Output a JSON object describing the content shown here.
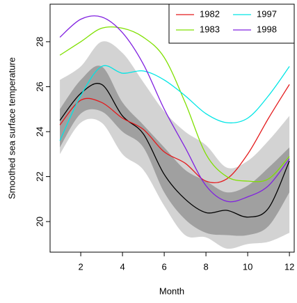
{
  "chart_data": {
    "type": "line",
    "xlabel": "Month",
    "ylabel": "Smoothed sea surface temperature",
    "x": [
      1,
      2,
      3,
      4,
      5,
      6,
      7,
      8,
      9,
      10,
      11,
      12
    ],
    "xlim": [
      0.53,
      12.23
    ],
    "ylim": [
      18.64,
      29.67
    ],
    "xticks": [
      2,
      4,
      6,
      8,
      10,
      12
    ],
    "yticks": [
      20,
      22,
      24,
      26,
      28
    ],
    "smooth": true,
    "legend": "top-right",
    "legend_columns": 2,
    "bands": [
      {
        "color": "#d3d3d3",
        "upper": [
          26.3,
          26.9,
          28.0,
          27.5,
          26.2,
          24.9,
          24.0,
          23.4,
          22.4,
          22.7,
          23.6,
          24.7
        ],
        "lower": [
          23.0,
          24.4,
          24.4,
          23.0,
          22.3,
          20.7,
          19.4,
          19.3,
          18.8,
          19.0,
          19.1,
          19.5
        ]
      },
      {
        "color": "#a0a0a0",
        "upper": [
          25.0,
          26.3,
          26.9,
          25.3,
          24.3,
          23.3,
          22.3,
          21.8,
          21.3,
          21.6,
          22.4,
          23.3
        ],
        "lower": [
          23.3,
          24.8,
          24.9,
          24.0,
          23.3,
          21.3,
          20.1,
          19.5,
          19.4,
          19.4,
          19.8,
          21.3
        ]
      }
    ],
    "median": {
      "color": "#000000",
      "values": [
        24.5,
        25.7,
        26.1,
        24.7,
        23.9,
        22.1,
        21.0,
        20.4,
        20.5,
        20.2,
        20.6,
        22.7
      ]
    },
    "series": [
      {
        "name": "1982",
        "color": "#e41a1c",
        "values": [
          24.3,
          25.4,
          25.3,
          24.6,
          24.1,
          23.1,
          22.6,
          21.8,
          21.9,
          23.0,
          24.6,
          26.1
        ]
      },
      {
        "name": "1983",
        "color": "#7fe000",
        "values": [
          27.4,
          28.0,
          28.6,
          28.6,
          28.2,
          27.3,
          25.3,
          23.0,
          22.0,
          21.8,
          21.9,
          22.9
        ]
      },
      {
        "name": "1997",
        "color": "#00e5e5",
        "values": [
          23.6,
          25.6,
          26.9,
          26.6,
          26.7,
          26.3,
          25.6,
          24.8,
          24.4,
          24.6,
          25.6,
          26.9
        ]
      },
      {
        "name": "1998",
        "color": "#8020e0",
        "values": [
          28.2,
          29.0,
          29.1,
          28.4,
          27.0,
          25.0,
          23.3,
          21.6,
          20.9,
          21.1,
          21.6,
          22.8
        ]
      }
    ]
  }
}
